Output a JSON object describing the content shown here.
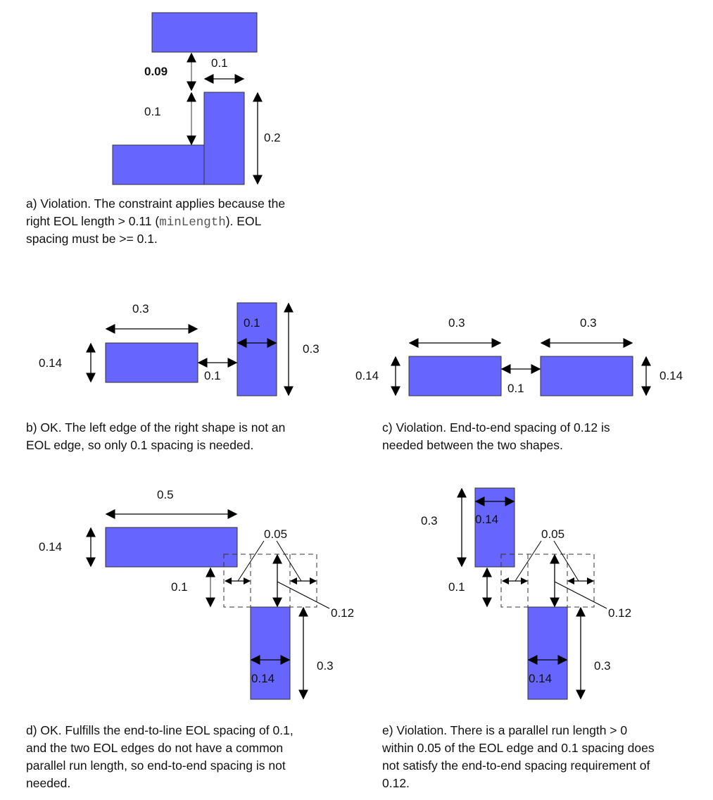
{
  "colors": {
    "shape_fill": "#6666ff",
    "shape_stroke": "#333333"
  },
  "panel_a": {
    "labels": {
      "spacing_top": "0.09",
      "width_top": "0.1",
      "spacing_bottom": "0.1",
      "height_right": "0.2"
    },
    "caption": [
      "a) Violation. The constraint applies because the",
      "right EOL length > 0.11 (",
      "minLength",
      "). EOL",
      "spacing must be >= 0.1."
    ]
  },
  "panel_b": {
    "labels": {
      "width_left": "0.3",
      "height_left": "0.14",
      "spacing": "0.1",
      "width_right": "0.1",
      "height_right": "0.3"
    },
    "caption": [
      "b) OK. The left edge of the right shape is not an",
      "EOL edge, so only 0.1 spacing is needed."
    ]
  },
  "panel_c": {
    "labels": {
      "width_left": "0.3",
      "width_right": "0.3",
      "height_left": "0.14",
      "height_right": "0.14",
      "spacing": "0.1"
    },
    "caption": [
      "c) Violation. End-to-end spacing of 0.12 is",
      "needed between the two shapes."
    ]
  },
  "panel_d": {
    "labels": {
      "width_top": "0.5",
      "height_top": "0.14",
      "spacing": "0.1",
      "within": "0.05",
      "end_to_end": "0.12",
      "width_bottom": "0.14",
      "height_bottom": "0.3"
    },
    "caption": [
      "d) OK. Fulfills the end-to-line EOL spacing of 0.1,",
      "and the two EOL edges do not have a common",
      "parallel run length, so end-to-end spacing is not",
      "needed."
    ]
  },
  "panel_e": {
    "labels": {
      "height_top": "0.3",
      "width_top": "0.14",
      "spacing": "0.1",
      "within": "0.05",
      "end_to_end": "0.12",
      "width_bottom": "0.14",
      "height_bottom": "0.3"
    },
    "caption": [
      "e) Violation. There is a parallel run length > 0",
      "within 0.05 of the EOL edge and 0.1 spacing does",
      "not satisfy the end-to-end spacing requirement of",
      "0.12."
    ]
  }
}
